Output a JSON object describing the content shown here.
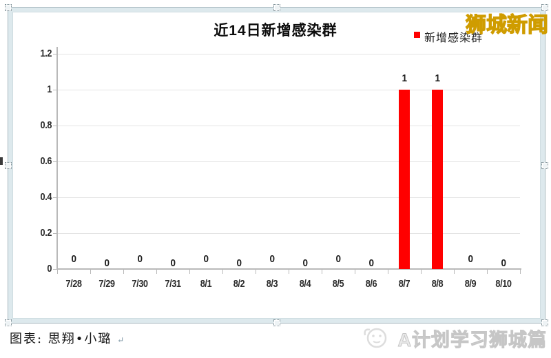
{
  "header": {
    "site_badge": "狮城新闻"
  },
  "chart_data": {
    "type": "bar",
    "title": "近14日新增感染群",
    "legend": {
      "label": "新增感染群",
      "color": "#ff0000",
      "position": "top-right"
    },
    "categories": [
      "7/28",
      "7/29",
      "7/30",
      "7/31",
      "8/1",
      "8/2",
      "8/3",
      "8/4",
      "8/5",
      "8/6",
      "8/7",
      "8/8",
      "8/9",
      "8/10"
    ],
    "values": [
      0,
      0,
      0,
      0,
      0,
      0,
      0,
      0,
      0,
      0,
      1,
      1,
      0,
      0
    ],
    "data_labels": [
      "0",
      "0",
      "0",
      "0",
      "0",
      "0",
      "0",
      "0",
      "0",
      "0",
      "1",
      "1",
      "0",
      "0"
    ],
    "xlabel": "",
    "ylabel": "",
    "ylim": [
      0,
      1.2
    ],
    "yticks": [
      0,
      0.2,
      0.4,
      0.6,
      0.8,
      1,
      1.2
    ],
    "ytick_labels": [
      "0",
      "0.2",
      "0.4",
      "0.6",
      "0.8",
      "1",
      "1.2"
    ],
    "grid": true,
    "bar_color": "#ff0000"
  },
  "footer": {
    "caption": "图表: 思翔•小璐",
    "paragraph_mark": "↵",
    "watermark": "A计划学习狮城篇"
  },
  "colors": {
    "bar": "#ff0000",
    "badge_yellow": "#ffee00",
    "frame_band": "#dde9ed",
    "grid": "#e4e4e4",
    "axis": "#b9b9b9",
    "watermark_gray": "#d9d9d9"
  }
}
